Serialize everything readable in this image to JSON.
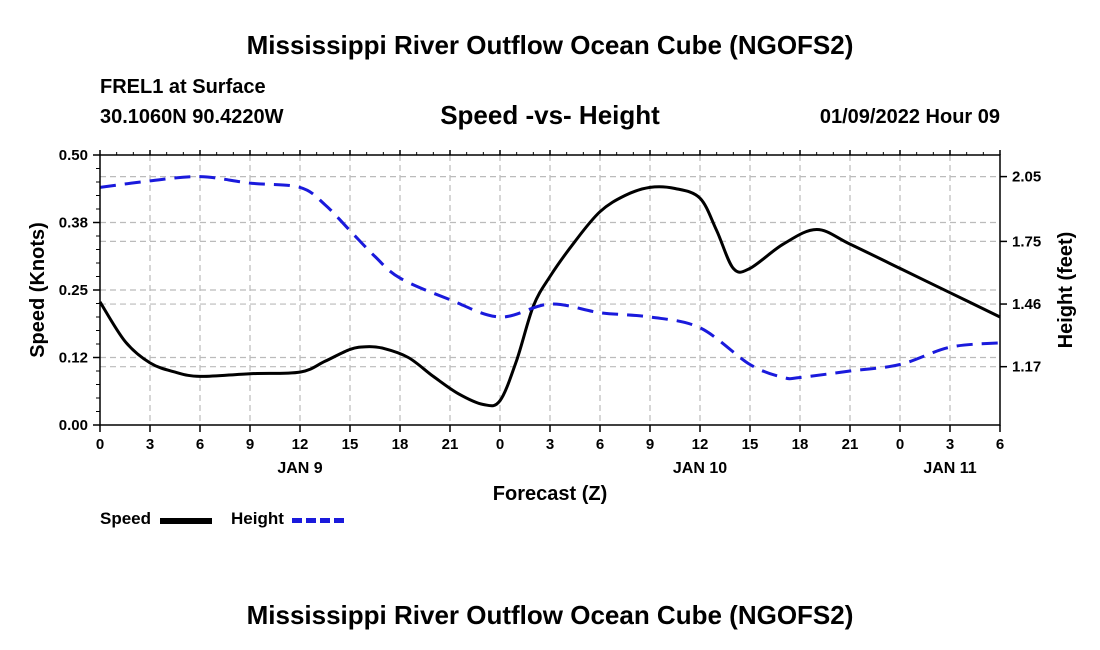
{
  "header": {
    "title": "Mississippi River Outflow Ocean Cube (NGOFS2)",
    "station": "FREL1 at Surface",
    "coords": "30.1060N  90.4220W",
    "subtitle": "Speed -vs- Height",
    "timestamp": "01/09/2022 Hour 09"
  },
  "footer": {
    "title": "Mississippi River Outflow Ocean Cube (NGOFS2)"
  },
  "legend": {
    "speed_label": "Speed",
    "height_label": "Height"
  },
  "colors": {
    "speed": "#000000",
    "height": "#1a1adc",
    "grid": "#bbbbbb"
  },
  "chart_data": {
    "type": "line",
    "title": "Speed -vs- Height",
    "xlabel": "Forecast (Z)",
    "ylabel": "Speed (Knots)",
    "y2label": "Height (feet)",
    "x_range": [
      0,
      54
    ],
    "x_tick_values": [
      0,
      3,
      6,
      9,
      12,
      15,
      18,
      21,
      24,
      27,
      30,
      33,
      36,
      39,
      42,
      45,
      48,
      51,
      54
    ],
    "x_tick_labels": [
      "0",
      "3",
      "6",
      "9",
      "12",
      "15",
      "18",
      "21",
      "0",
      "3",
      "6",
      "9",
      "12",
      "15",
      "18",
      "21",
      "0",
      "3",
      "6"
    ],
    "date_labels": [
      {
        "x": 12,
        "label": "JAN 9"
      },
      {
        "x": 36,
        "label": "JAN 10"
      },
      {
        "x": 51,
        "label": "JAN 11"
      }
    ],
    "ylim": [
      0,
      0.5
    ],
    "y_ticks": [
      0.0,
      0.125,
      0.25,
      0.375,
      0.5
    ],
    "y_tick_labels": [
      "0.00",
      "0.12",
      "0.25",
      "0.38",
      "0.50"
    ],
    "y2lim": [
      0.9,
      2.15
    ],
    "y2_ticks": [
      1.17,
      1.46,
      1.75,
      2.05
    ],
    "y2_tick_labels": [
      "1.17",
      "1.46",
      "1.75",
      "2.05"
    ],
    "series": [
      {
        "name": "Speed",
        "axis": "left",
        "style": "solid",
        "x": [
          0,
          1.5,
          3,
          4.5,
          6,
          9,
          12,
          13.5,
          15,
          16,
          17,
          18.5,
          20,
          21.5,
          23,
          24,
          25,
          26,
          27,
          28.5,
          30,
          31.5,
          33,
          34.5,
          36,
          37,
          38,
          39,
          41,
          43,
          45,
          48,
          51,
          54
        ],
        "values": [
          0.228,
          0.155,
          0.115,
          0.098,
          0.09,
          0.095,
          0.098,
          0.118,
          0.14,
          0.145,
          0.142,
          0.125,
          0.09,
          0.058,
          0.038,
          0.045,
          0.12,
          0.22,
          0.275,
          0.34,
          0.395,
          0.425,
          0.44,
          0.438,
          0.42,
          0.36,
          0.29,
          0.29,
          0.335,
          0.362,
          0.335,
          0.29,
          0.245,
          0.2
        ]
      },
      {
        "name": "Height",
        "axis": "right",
        "style": "dashed",
        "x": [
          0,
          3,
          6,
          9,
          12,
          13.5,
          15,
          16.5,
          18,
          21,
          24,
          27,
          30,
          33,
          36,
          39,
          41,
          42,
          45,
          48,
          51,
          54
        ],
        "values": [
          2.0,
          2.03,
          2.05,
          2.02,
          2.0,
          1.92,
          1.8,
          1.68,
          1.58,
          1.48,
          1.4,
          1.46,
          1.42,
          1.4,
          1.35,
          1.18,
          1.12,
          1.12,
          1.15,
          1.18,
          1.26,
          1.28
        ]
      }
    ]
  }
}
